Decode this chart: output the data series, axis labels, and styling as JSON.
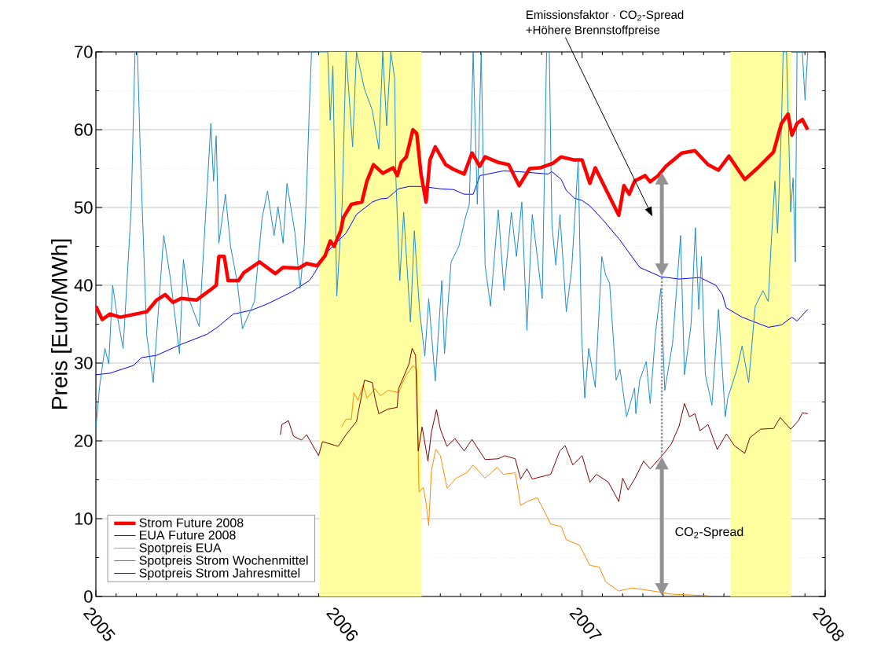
{
  "chart_data": {
    "type": "line",
    "ylabel": "Preis [Euro/MWh]",
    "xlim": [
      2005,
      2008
    ],
    "xticks": [
      2005,
      2006,
      2007,
      2008
    ],
    "ylim": [
      0,
      70
    ],
    "yticks": [
      0,
      10,
      20,
      30,
      40,
      50,
      60,
      70
    ],
    "grid": "y",
    "legend": "bottom left",
    "bands": [
      {
        "axis": "x",
        "from": 2005.92,
        "to": 2006.34,
        "color": "#ffffa0"
      },
      {
        "axis": "x",
        "from": 2007.61,
        "to": 2007.86,
        "color": "#ffffa0"
      }
    ],
    "annotations": [
      "Emissionsfaktor · CO$_{2}$-Spread",
      "+Höhere Brennstoffpreise",
      "CO$_{2}$-Spread"
    ],
    "series": [
      {
        "name": "Strom Future 2008",
        "color": "#ff0000",
        "x": [
          2005.0,
          2005.026,
          2005.058,
          2005.1,
          2005.21,
          2005.25,
          2005.285,
          2005.317,
          2005.35,
          2005.414,
          2005.479,
          2005.495,
          2005.506,
          2005.528,
          2005.544,
          2005.587,
          2005.608,
          2005.673,
          2005.738,
          2005.77,
          2005.835,
          2005.867,
          2005.91,
          2005.943,
          2005.964,
          2005.98,
          2006.007,
          2006.018,
          2006.051,
          2006.094,
          2006.115,
          2006.142,
          2006.18,
          2006.223,
          2006.24,
          2006.256,
          2006.277,
          2006.304,
          2006.32,
          2006.337,
          2006.358,
          2006.374,
          2006.396,
          2006.439,
          2006.471,
          2006.515,
          2006.547,
          2006.579,
          2006.601,
          2006.655,
          2006.698,
          2006.741,
          2006.784,
          2006.827,
          2006.881,
          2006.914,
          2006.968,
          2007.0,
          2007.032,
          2007.054,
          2007.108,
          2007.151,
          2007.172,
          2007.194,
          2007.216,
          2007.259,
          2007.28,
          2007.313,
          2007.345,
          2007.41,
          2007.464,
          2007.518,
          2007.561,
          2007.604,
          2007.669,
          2007.723,
          2007.787,
          2007.82,
          2007.847,
          2007.863,
          2007.884,
          2007.906,
          2007.928
        ],
        "values": [
          37.3,
          35.6,
          36.3,
          35.9,
          36.6,
          38.1,
          38.8,
          37.8,
          38.3,
          38.1,
          39.6,
          40.0,
          43.7,
          43.7,
          40.6,
          40.6,
          41.6,
          43.0,
          41.5,
          42.3,
          42.2,
          42.8,
          42.5,
          43.8,
          45.7,
          45.0,
          47.0,
          48.7,
          50.4,
          50.7,
          53.4,
          55.5,
          54.4,
          55.1,
          54.1,
          55.8,
          56.5,
          60.0,
          59.5,
          54.4,
          50.7,
          56.1,
          57.8,
          55.5,
          54.9,
          54.3,
          57.0,
          55.3,
          56.5,
          55.8,
          55.5,
          52.8,
          55.0,
          55.1,
          55.7,
          56.5,
          56.1,
          56.1,
          53.1,
          55.1,
          51.7,
          49.0,
          52.8,
          51.7,
          53.4,
          54.1,
          53.3,
          54.1,
          55.3,
          57.0,
          57.3,
          55.5,
          54.8,
          56.6,
          53.6,
          55.1,
          57.1,
          60.8,
          62.0,
          59.3,
          60.8,
          61.3,
          60.0
        ]
      },
      {
        "name": "EUA Future 2008",
        "color": "#800000",
        "x": [
          2005.759,
          2005.765,
          2005.792,
          2005.813,
          2005.846,
          2005.867,
          2005.916,
          2005.932,
          2005.997,
          2006.029,
          2006.072,
          2006.105,
          2006.137,
          2006.148,
          2006.164,
          2006.202,
          2006.239,
          2006.245,
          2006.288,
          2006.301,
          2006.315,
          2006.326,
          2006.342,
          2006.366,
          2006.38,
          2006.401,
          2006.417,
          2006.444,
          2006.477,
          2006.515,
          2006.547,
          2006.601,
          2006.655,
          2006.682,
          2006.725,
          2006.747,
          2006.773,
          2006.795,
          2006.871,
          2006.908,
          2006.93,
          2006.962,
          2007.0,
          2007.032,
          2007.059,
          2007.108,
          2007.151,
          2007.167,
          2007.189,
          2007.216,
          2007.253,
          2007.28,
          2007.329,
          2007.367,
          2007.399,
          2007.421,
          2007.442,
          2007.464,
          2007.485,
          2007.518,
          2007.556,
          2007.594,
          2007.626,
          2007.669,
          2007.69,
          2007.734,
          2007.788,
          2007.815,
          2007.858,
          2007.89,
          2007.906,
          2007.928
        ],
        "values": [
          20.8,
          22.1,
          22.6,
          20.6,
          20.1,
          20.8,
          18.1,
          19.9,
          19.3,
          20.8,
          22.5,
          27.8,
          27.5,
          25.5,
          23.5,
          24.1,
          24.3,
          26.7,
          29.9,
          31.9,
          31.0,
          18.7,
          21.8,
          17.4,
          21.1,
          24.0,
          21.5,
          19.3,
          20.3,
          18.7,
          20.2,
          17.6,
          17.7,
          18.1,
          17.7,
          15.1,
          16.4,
          15.1,
          15.7,
          18.7,
          19.4,
          16.9,
          18.1,
          14.7,
          15.7,
          14.7,
          12.2,
          15.2,
          13.7,
          15.1,
          17.4,
          16.4,
          18.1,
          19.6,
          21.9,
          24.8,
          23.1,
          23.5,
          21.3,
          22.1,
          18.9,
          20.9,
          19.4,
          18.4,
          20.4,
          21.5,
          21.6,
          23.0,
          21.5,
          22.6,
          23.6,
          23.5
        ]
      },
      {
        "name": "Spotpreis EUA",
        "color": "#ff8c00",
        "x": [
          2006.011,
          2006.029,
          2006.051,
          2006.061,
          2006.078,
          2006.099,
          2006.115,
          2006.148,
          2006.17,
          2006.202,
          2006.245,
          2006.272,
          2006.304,
          2006.32,
          2006.329,
          2006.347,
          2006.358,
          2006.369,
          2006.38,
          2006.398,
          2006.417,
          2006.445,
          2006.482,
          2006.525,
          2006.552,
          2006.601,
          2006.65,
          2006.676,
          2006.725,
          2006.747,
          2006.773,
          2006.816,
          2006.871,
          2006.914,
          2006.935,
          2006.989,
          2007.032,
          2007.07,
          2007.097,
          2007.119,
          2007.151,
          2007.205,
          2007.248,
          2007.313,
          2007.367,
          2007.518
        ],
        "values": [
          21.8,
          22.8,
          22.8,
          26.2,
          25.2,
          27.2,
          25.5,
          26.7,
          25.8,
          26.5,
          26.2,
          28.2,
          29.7,
          29.2,
          13.4,
          14.0,
          12.0,
          9.1,
          16.1,
          18.9,
          18.1,
          13.9,
          15.2,
          15.9,
          16.9,
          15.2,
          16.6,
          15.7,
          15.9,
          11.7,
          12.2,
          12.7,
          9.3,
          9.0,
          7.3,
          6.6,
          4.0,
          3.8,
          1.9,
          1.4,
          0.7,
          1.1,
          0.9,
          0.6,
          0.3,
          0.1
        ]
      },
      {
        "name": "Spotpreis Strom Wochenmittel",
        "color": "#1e8ccb",
        "x": [
          2005.0,
          2005.015,
          2005.037,
          2005.053,
          2005.069,
          2005.085,
          2005.112,
          2005.145,
          2005.161,
          2005.171,
          2005.182,
          2005.209,
          2005.236,
          2005.279,
          2005.306,
          2005.344,
          2005.36,
          2005.382,
          2005.425,
          2005.473,
          2005.484,
          2005.495,
          2005.506,
          2005.533,
          2005.554,
          2005.582,
          2005.603,
          2005.652,
          2005.684,
          2005.706,
          2005.733,
          2005.749,
          2005.77,
          2005.786,
          2005.819,
          2005.84,
          2005.857,
          2005.867,
          2005.878,
          2005.887,
          2005.954,
          2005.964,
          2005.975,
          2005.991,
          2006.013,
          2006.029,
          2006.056,
          2006.072,
          2006.105,
          2006.137,
          2006.164,
          2006.18,
          2006.196,
          2006.213,
          2006.229,
          2006.234,
          2006.25,
          2006.266,
          2006.294,
          2006.31,
          2006.331,
          2006.353,
          2006.369,
          2006.396,
          2006.423,
          2006.434,
          2006.461,
          2006.493,
          2006.52,
          2006.536,
          2006.552,
          2006.569,
          2006.585,
          2006.601,
          2006.623,
          2006.655,
          2006.679,
          2006.709,
          2006.73,
          2006.752,
          2006.773,
          2006.795,
          2006.836,
          2006.854,
          2006.865,
          2006.876,
          2006.892,
          2006.909,
          2006.935,
          2006.957,
          2006.984,
          2006.998,
          2007.011,
          2007.027,
          2007.054,
          2007.081,
          2007.097,
          2007.113,
          2007.14,
          2007.156,
          2007.183,
          2007.216,
          2007.221,
          2007.237,
          2007.264,
          2007.28,
          2007.302,
          2007.324,
          2007.34,
          2007.372,
          2007.405,
          2007.421,
          2007.448,
          2007.466,
          2007.48,
          2007.491,
          2007.507,
          2007.534,
          2007.561,
          2007.589,
          2007.599,
          2007.637,
          2007.658,
          2007.685,
          2007.712,
          2007.744,
          2007.766,
          2007.777,
          2007.793,
          2007.804,
          2007.82,
          2007.827,
          2007.841,
          2007.858,
          2007.868,
          2007.877,
          2007.884,
          2007.906,
          2007.917,
          2007.928
        ],
        "values": [
          21.6,
          26.9,
          31.9,
          29.9,
          40.0,
          36.6,
          31.9,
          49.7,
          70,
          70,
          57.8,
          33.6,
          27.5,
          46.4,
          41.0,
          31.2,
          43.3,
          38.3,
          34.7,
          60.8,
          53.4,
          59.2,
          45.4,
          51.7,
          45.0,
          40.3,
          34.4,
          37.9,
          48.7,
          52.1,
          46.4,
          50.1,
          45.4,
          53.1,
          46.7,
          39.6,
          45.0,
          52.4,
          62.8,
          70,
          70,
          61.2,
          68.2,
          38.6,
          50.4,
          70,
          57.8,
          70,
          65.2,
          62.5,
          57.5,
          70,
          60.5,
          70,
          66.6,
          53.8,
          40.6,
          49.4,
          35.3,
          47.0,
          36.9,
          30.9,
          38.3,
          27.7,
          40.6,
          31.2,
          43.0,
          45.0,
          48.7,
          50.4,
          70,
          50.4,
          70,
          42.6,
          37.3,
          49.7,
          39.3,
          49.4,
          43.7,
          50.7,
          34.2,
          49.1,
          38.3,
          70,
          70,
          47.7,
          42.6,
          49.1,
          36.6,
          42.0,
          56.1,
          33.6,
          25.5,
          31.9,
          26.9,
          43.7,
          41.3,
          40.3,
          27.8,
          29.2,
          23.1,
          26.8,
          23.5,
          27.8,
          30.2,
          24.8,
          33.9,
          39.6,
          26.5,
          32.5,
          46.4,
          28.5,
          34.9,
          47.4,
          36.9,
          43.7,
          28.5,
          24.6,
          36.9,
          23.1,
          25.5,
          29.2,
          32.2,
          27.5,
          37.3,
          39.3,
          37.9,
          45.0,
          53.4,
          46.7,
          60.5,
          70,
          70,
          49.4,
          53.8,
          43.0,
          70,
          70,
          63.8,
          70
        ]
      },
      {
        "name": "Spotpreis Strom Jahresmittel",
        "color": "#0000ff",
        "x": [
          2005.0,
          2005.058,
          2005.155,
          2005.188,
          2005.25,
          2005.35,
          2005.457,
          2005.5,
          2005.565,
          2005.64,
          2005.705,
          2005.803,
          2005.878,
          2005.9,
          2005.943,
          2006.029,
          2006.072,
          2006.137,
          2006.17,
          2006.2,
          2006.245,
          2006.288,
          2006.342,
          2006.418,
          2006.471,
          2006.515,
          2006.552,
          2006.58,
          2006.676,
          2006.741,
          2006.86,
          2006.876,
          2006.914,
          2006.935,
          2006.968,
          2007.0,
          2007.032,
          2007.086,
          2007.151,
          2007.237,
          2007.324,
          2007.399,
          2007.485,
          2007.55,
          2007.577,
          2007.593,
          2007.658,
          2007.766,
          2007.82,
          2007.863,
          2007.884,
          2007.928
        ],
        "values": [
          28.5,
          28.7,
          29.7,
          30.7,
          31.0,
          32.4,
          33.7,
          34.6,
          36.3,
          36.8,
          37.6,
          39.1,
          40.6,
          41.6,
          44.0,
          46.7,
          49.1,
          50.7,
          51.1,
          51.2,
          52.4,
          52.7,
          52.7,
          52.4,
          52.3,
          51.7,
          51.7,
          54.1,
          54.7,
          54.6,
          54.3,
          54.6,
          53.6,
          52.2,
          51.2,
          50.9,
          50.2,
          48.4,
          46.0,
          42.3,
          41.1,
          40.8,
          41.0,
          40.0,
          38.8,
          37.1,
          35.9,
          34.6,
          34.9,
          35.9,
          35.4,
          36.9
        ]
      }
    ]
  }
}
